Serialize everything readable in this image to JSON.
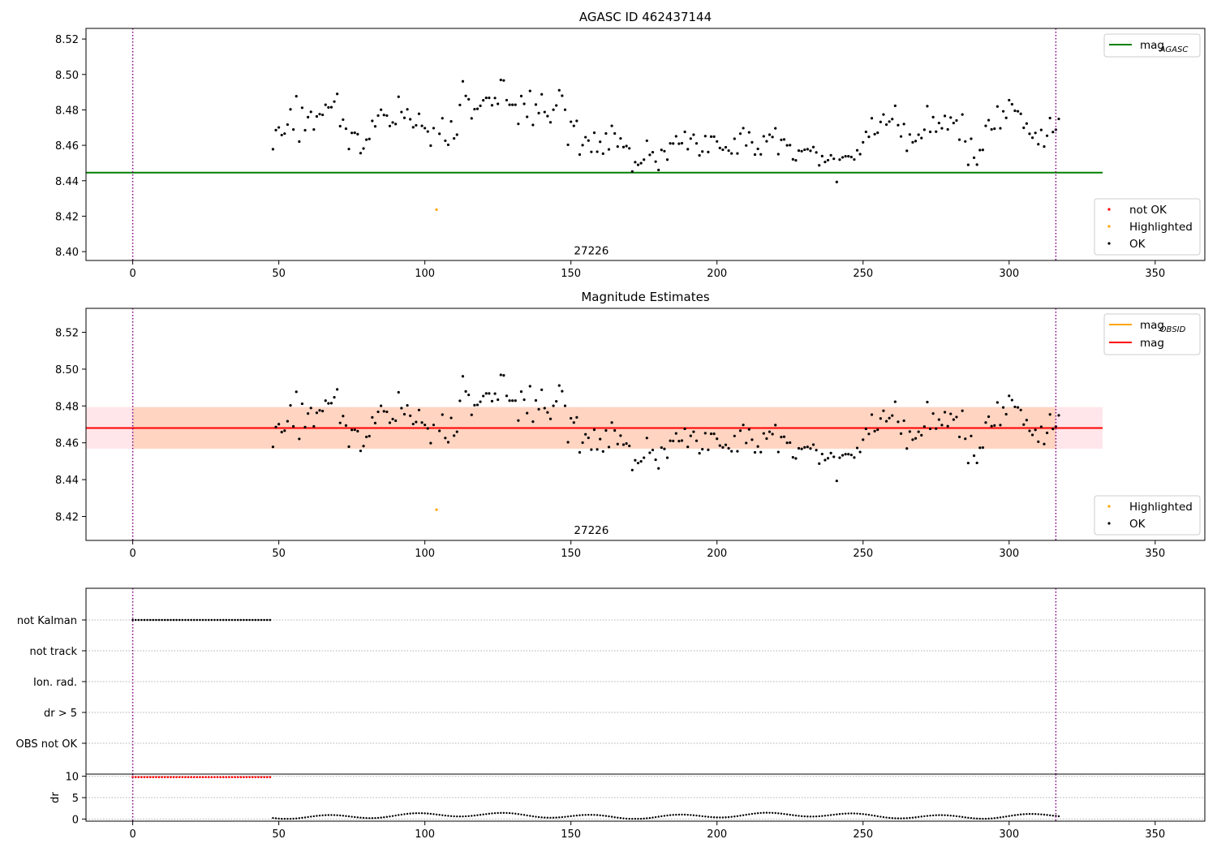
{
  "chart_data": [
    {
      "type": "scatter",
      "title": "AGASC ID 462437144",
      "xlim": [
        -16,
        367
      ],
      "ylim": [
        8.395,
        8.526
      ],
      "xticks": [
        0,
        50,
        100,
        150,
        200,
        250,
        300,
        350
      ],
      "yticks": [
        8.4,
        8.42,
        8.44,
        8.46,
        8.48,
        8.5,
        8.52
      ],
      "ytick_decimals": 2,
      "vlines": [
        0,
        316
      ],
      "hlines": [
        {
          "name": "mag",
          "sub": "AGASC",
          "y": 8.4446,
          "x_end": 332,
          "color": "#008000"
        }
      ],
      "annotation": {
        "text": "27226",
        "x": 157,
        "y": 8.3985
      },
      "legend_lines": [
        {
          "name": "mag",
          "sub": "AGASC",
          "color": "#008000"
        }
      ],
      "legend_points": [
        {
          "name": "not OK",
          "color": "#ff0000"
        },
        {
          "name": "Highlighted",
          "color": "#ffa500"
        },
        {
          "name": "OK",
          "color": "#000000"
        }
      ],
      "highlighted": [
        {
          "x": 104,
          "y": 8.4237
        }
      ],
      "ok_series": "mag_points"
    },
    {
      "type": "scatter",
      "title": "Magnitude Estimates",
      "xlim": [
        -16,
        367
      ],
      "ylim": [
        8.407,
        8.533
      ],
      "xticks": [
        0,
        50,
        100,
        150,
        200,
        250,
        300,
        350
      ],
      "yticks": [
        8.42,
        8.44,
        8.46,
        8.48,
        8.5,
        8.52
      ],
      "ytick_decimals": 2,
      "vlines": [
        0,
        316
      ],
      "bands": [
        {
          "y0": 8.4568,
          "y1": 8.4794,
          "x0": -16,
          "x1": 332,
          "color": "#ff4d6a",
          "opacity": 0.14
        },
        {
          "y0": 8.4568,
          "y1": 8.4794,
          "x0": 0,
          "x1": 316,
          "color": "#ff9a40",
          "opacity": 0.24
        }
      ],
      "hlines": [
        {
          "name": "mag",
          "sub": "OBSID",
          "y": 8.468,
          "x_start": 0,
          "x_end": 316,
          "color": "#ffa500"
        },
        {
          "name": "mag",
          "y": 8.468,
          "x_start": -16,
          "x_end": 332,
          "color": "#ff0000"
        }
      ],
      "annotation": {
        "text": "27226",
        "x": 157,
        "y": 8.4105
      },
      "legend_lines": [
        {
          "name": "mag",
          "sub": "OBSID",
          "color": "#ffa500"
        },
        {
          "name": "mag",
          "color": "#ff0000"
        }
      ],
      "legend_points": [
        {
          "name": "Highlighted",
          "color": "#ffa500"
        },
        {
          "name": "OK",
          "color": "#000000"
        }
      ],
      "highlighted": [
        {
          "x": 104,
          "y": 8.4237
        }
      ],
      "ok_series": "mag_points"
    }
  ],
  "mag_points": [
    [
      48,
      8.4578
    ],
    [
      49,
      8.4686
    ],
    [
      50,
      8.4701
    ],
    [
      51,
      8.4658
    ],
    [
      52,
      8.4666
    ],
    [
      53,
      8.4717
    ],
    [
      54,
      8.4803
    ],
    [
      55,
      8.4689
    ],
    [
      56,
      8.4877
    ],
    [
      57,
      8.4621
    ],
    [
      58,
      8.4812
    ],
    [
      59,
      8.4685
    ],
    [
      60,
      8.4759
    ],
    [
      61,
      8.4789
    ],
    [
      62,
      8.4689
    ],
    [
      63,
      8.4763
    ],
    [
      64,
      8.4776
    ],
    [
      65,
      8.4772
    ],
    [
      66,
      8.4829
    ],
    [
      67,
      8.4814
    ],
    [
      68,
      8.4815
    ],
    [
      69,
      8.4847
    ],
    [
      70,
      8.489
    ],
    [
      71,
      8.4708
    ],
    [
      72,
      8.4745
    ],
    [
      73,
      8.4694
    ],
    [
      74,
      8.4579
    ],
    [
      75,
      8.467
    ],
    [
      76,
      8.4671
    ],
    [
      77,
      8.4663
    ],
    [
      78,
      8.4556
    ],
    [
      79,
      8.4582
    ],
    [
      80,
      8.4632
    ],
    [
      81,
      8.4636
    ],
    [
      82,
      8.4738
    ],
    [
      83,
      8.4707
    ],
    [
      84,
      8.4768
    ],
    [
      85,
      8.4801
    ],
    [
      86,
      8.4771
    ],
    [
      87,
      8.4768
    ],
    [
      88,
      8.4709
    ],
    [
      89,
      8.4729
    ],
    [
      90,
      8.472
    ],
    [
      91,
      8.4874
    ],
    [
      92,
      8.4788
    ],
    [
      93,
      8.4755
    ],
    [
      94,
      8.4803
    ],
    [
      95,
      8.4747
    ],
    [
      96,
      8.4702
    ],
    [
      97,
      8.4713
    ],
    [
      98,
      8.4778
    ],
    [
      99,
      8.471
    ],
    [
      100,
      8.4697
    ],
    [
      101,
      8.4678
    ],
    [
      102,
      8.4598
    ],
    [
      103,
      8.4697
    ],
    [
      105,
      8.4665
    ],
    [
      106,
      8.4753
    ],
    [
      107,
      8.4626
    ],
    [
      108,
      8.4603
    ],
    [
      109,
      8.4735
    ],
    [
      110,
      8.4639
    ],
    [
      111,
      8.466
    ],
    [
      112,
      8.4828
    ],
    [
      113,
      8.4961
    ],
    [
      114,
      8.4879
    ],
    [
      115,
      8.486
    ],
    [
      116,
      8.4752
    ],
    [
      117,
      8.4804
    ],
    [
      118,
      8.4806
    ],
    [
      119,
      8.4823
    ],
    [
      120,
      8.4854
    ],
    [
      121,
      8.4868
    ],
    [
      122,
      8.4868
    ],
    [
      123,
      8.4826
    ],
    [
      124,
      8.4867
    ],
    [
      125,
      8.4834
    ],
    [
      126,
      8.4969
    ],
    [
      127,
      8.4966
    ],
    [
      128,
      8.4855
    ],
    [
      129,
      8.4829
    ],
    [
      130,
      8.4829
    ],
    [
      131,
      8.4829
    ],
    [
      132,
      8.4721
    ],
    [
      133,
      8.4878
    ],
    [
      134,
      8.4834
    ],
    [
      135,
      8.4761
    ],
    [
      136,
      8.4907
    ],
    [
      137,
      8.4715
    ],
    [
      138,
      8.483
    ],
    [
      139,
      8.4782
    ],
    [
      140,
      8.4888
    ],
    [
      141,
      8.4788
    ],
    [
      142,
      8.4765
    ],
    [
      143,
      8.473
    ],
    [
      144,
      8.4801
    ],
    [
      145,
      8.4825
    ],
    [
      146,
      8.4911
    ],
    [
      147,
      8.488
    ],
    [
      148,
      8.4801
    ],
    [
      149,
      8.4603
    ],
    [
      150,
      8.4733
    ],
    [
      151,
      8.471
    ],
    [
      152,
      8.4738
    ],
    [
      153,
      8.4548
    ],
    [
      154,
      8.4601
    ],
    [
      155,
      8.4646
    ],
    [
      156,
      8.4627
    ],
    [
      157,
      8.4563
    ],
    [
      158,
      8.4671
    ],
    [
      159,
      8.4564
    ],
    [
      160,
      8.462
    ],
    [
      161,
      8.4553
    ],
    [
      162,
      8.4667
    ],
    [
      163,
      8.4577
    ],
    [
      164,
      8.471
    ],
    [
      165,
      8.4667
    ],
    [
      166,
      8.4593
    ],
    [
      167,
      8.4639
    ],
    [
      168,
      8.459
    ],
    [
      169,
      8.4596
    ],
    [
      170,
      8.4583
    ],
    [
      171,
      8.4452
    ],
    [
      172,
      8.4505
    ],
    [
      173,
      8.449
    ],
    [
      174,
      8.4499
    ],
    [
      175,
      8.4519
    ],
    [
      176,
      8.4626
    ],
    [
      177,
      8.4546
    ],
    [
      178,
      8.4561
    ],
    [
      179,
      8.4508
    ],
    [
      180,
      8.4461
    ],
    [
      181,
      8.4574
    ],
    [
      182,
      8.4567
    ],
    [
      183,
      8.4519
    ],
    [
      184,
      8.4611
    ],
    [
      185,
      8.461
    ],
    [
      186,
      8.4651
    ],
    [
      187,
      8.4609
    ],
    [
      188,
      8.4612
    ],
    [
      189,
      8.4676
    ],
    [
      190,
      8.4578
    ],
    [
      191,
      8.4638
    ],
    [
      192,
      8.466
    ],
    [
      193,
      8.4611
    ],
    [
      194,
      8.4543
    ],
    [
      195,
      8.4565
    ],
    [
      196,
      8.4652
    ],
    [
      197,
      8.4562
    ],
    [
      198,
      8.4649
    ],
    [
      199,
      8.4649
    ],
    [
      200,
      8.4622
    ],
    [
      201,
      8.4585
    ],
    [
      202,
      8.4575
    ],
    [
      203,
      8.4589
    ],
    [
      204,
      8.457
    ],
    [
      205,
      8.4554
    ],
    [
      206,
      8.4637
    ],
    [
      207,
      8.4554
    ],
    [
      208,
      8.4666
    ],
    [
      209,
      8.4697
    ],
    [
      210,
      8.4599
    ],
    [
      211,
      8.4673
    ],
    [
      212,
      8.4617
    ],
    [
      213,
      8.4548
    ],
    [
      214,
      8.458
    ],
    [
      215,
      8.4549
    ],
    [
      216,
      8.4651
    ],
    [
      217,
      8.4623
    ],
    [
      218,
      8.466
    ],
    [
      219,
      8.4647
    ],
    [
      220,
      8.4696
    ],
    [
      221,
      8.455
    ],
    [
      222,
      8.4631
    ],
    [
      223,
      8.4633
    ],
    [
      224,
      8.46
    ],
    [
      225,
      8.4601
    ],
    [
      226,
      8.4521
    ],
    [
      227,
      8.4515
    ],
    [
      228,
      8.457
    ],
    [
      229,
      8.4567
    ],
    [
      230,
      8.4575
    ],
    [
      231,
      8.4578
    ],
    [
      232,
      8.4569
    ],
    [
      233,
      8.459
    ],
    [
      234,
      8.456
    ],
    [
      235,
      8.4487
    ],
    [
      236,
      8.4539
    ],
    [
      237,
      8.4506
    ],
    [
      238,
      8.4516
    ],
    [
      239,
      8.4544
    ],
    [
      240,
      8.4524
    ],
    [
      241,
      8.4393
    ],
    [
      242,
      8.4519
    ],
    [
      243,
      8.4532
    ],
    [
      244,
      8.4538
    ],
    [
      245,
      8.4538
    ],
    [
      246,
      8.4534
    ],
    [
      247,
      8.452
    ],
    [
      248,
      8.4572
    ],
    [
      249,
      8.455
    ],
    [
      250,
      8.4617
    ],
    [
      251,
      8.4676
    ],
    [
      252,
      8.4648
    ],
    [
      253,
      8.4753
    ],
    [
      254,
      8.4663
    ],
    [
      255,
      8.4671
    ],
    [
      256,
      8.4732
    ],
    [
      257,
      8.4774
    ],
    [
      258,
      8.4717
    ],
    [
      259,
      8.4734
    ],
    [
      260,
      8.4748
    ],
    [
      261,
      8.4823
    ],
    [
      262,
      8.4714
    ],
    [
      263,
      8.465
    ],
    [
      264,
      8.472
    ],
    [
      265,
      8.4569
    ],
    [
      266,
      8.4661
    ],
    [
      267,
      8.4617
    ],
    [
      268,
      8.4624
    ],
    [
      269,
      8.466
    ],
    [
      270,
      8.4641
    ],
    [
      271,
      8.4688
    ],
    [
      272,
      8.4821
    ],
    [
      273,
      8.4676
    ],
    [
      274,
      8.4759
    ],
    [
      275,
      8.4677
    ],
    [
      276,
      8.4726
    ],
    [
      277,
      8.4696
    ],
    [
      278,
      8.4766
    ],
    [
      279,
      8.469
    ],
    [
      280,
      8.4757
    ],
    [
      281,
      8.4726
    ],
    [
      282,
      8.474
    ],
    [
      283,
      8.4632
    ],
    [
      284,
      8.4774
    ],
    [
      285,
      8.4622
    ],
    [
      286,
      8.449
    ],
    [
      287,
      8.4637
    ],
    [
      288,
      8.453
    ],
    [
      289,
      8.4491
    ],
    [
      290,
      8.4573
    ],
    [
      291,
      8.4574
    ],
    [
      292,
      8.471
    ],
    [
      293,
      8.4742
    ],
    [
      294,
      8.469
    ],
    [
      295,
      8.4694
    ],
    [
      296,
      8.4819
    ],
    [
      297,
      8.4696
    ],
    [
      298,
      8.4792
    ],
    [
      299,
      8.4755
    ],
    [
      300,
      8.4855
    ],
    [
      301,
      8.4832
    ],
    [
      302,
      8.4795
    ],
    [
      303,
      8.4792
    ],
    [
      304,
      8.4778
    ],
    [
      305,
      8.4699
    ],
    [
      306,
      8.4723
    ],
    [
      307,
      8.4665
    ],
    [
      308,
      8.4643
    ],
    [
      309,
      8.467
    ],
    [
      310,
      8.4606
    ],
    [
      311,
      8.4687
    ],
    [
      312,
      8.4593
    ],
    [
      313,
      8.4654
    ],
    [
      314,
      8.4754
    ],
    [
      315,
      8.4675
    ],
    [
      316,
      8.4688
    ],
    [
      317,
      8.4749
    ]
  ],
  "flags_panel": {
    "xlim": [
      -16,
      367
    ],
    "xticks": [
      0,
      50,
      100,
      150,
      200,
      250,
      300,
      350
    ],
    "vlines": [
      0,
      316
    ],
    "categories": [
      "not Kalman",
      "not track",
      "Ion. rad.",
      "dr > 5",
      "OBS not OK"
    ],
    "not_kalman_x_range": [
      0,
      47
    ]
  },
  "dr_panel": {
    "ylabel": "dr",
    "ylim": [
      -0.5,
      10.5
    ],
    "yticks": [
      0,
      5,
      10
    ],
    "high_x_range": [
      0,
      47
    ],
    "high_value": 9.8,
    "points_x_range": [
      48,
      317
    ]
  }
}
